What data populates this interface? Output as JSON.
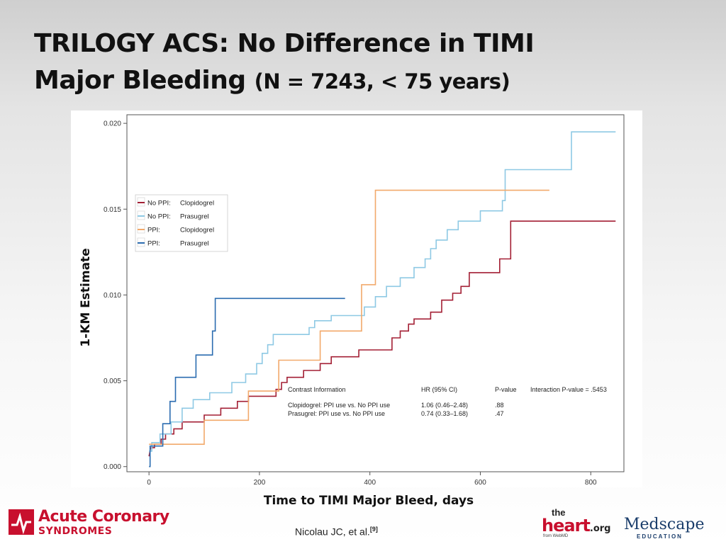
{
  "slide": {
    "title_line1": "TRILOGY ACS: No Difference in TIMI",
    "title_line2": "Major Bleeding",
    "title_line2_sub": "(N = 7243, < 75 years)",
    "citation": "Nicolau JC, et al.",
    "citation_ref": "[9]",
    "logos": {
      "acs_line1": "Acute Coronary",
      "acs_line2": "SYNDROMES",
      "heart_the": "the",
      "heart_main": "heart",
      "heart_org": ".org",
      "heart_from": "from WebMD",
      "medscape": "Medscape",
      "medscape_sub": "EDUCATION"
    }
  },
  "chart_data": {
    "type": "line",
    "step": true,
    "xlabel": "Time to TIMI Major Bleed, days",
    "ylabel": "1-KM Estimate",
    "xlim": [
      -40,
      860
    ],
    "ylim": [
      -0.0003,
      0.0205
    ],
    "xticks": [
      0,
      200,
      400,
      600,
      800
    ],
    "yticks": [
      0.0,
      0.005,
      0.01,
      0.015,
      0.02
    ],
    "ytick_labels": [
      "0.000",
      "0.005",
      "0.010",
      "0.015",
      "0.020"
    ],
    "grid": false,
    "legend_position": "top-left",
    "series": [
      {
        "name_group": "No PPI:",
        "name_drug": "Clopidogrel",
        "color": "#a31f34",
        "points": [
          [
            0,
            0.0006
          ],
          [
            3,
            0.0011
          ],
          [
            10,
            0.0011
          ],
          [
            10,
            0.0013
          ],
          [
            22,
            0.0013
          ],
          [
            22,
            0.0016
          ],
          [
            30,
            0.0016
          ],
          [
            30,
            0.0019
          ],
          [
            45,
            0.0019
          ],
          [
            45,
            0.0022
          ],
          [
            60,
            0.0022
          ],
          [
            60,
            0.0026
          ],
          [
            100,
            0.0026
          ],
          [
            100,
            0.003
          ],
          [
            130,
            0.003
          ],
          [
            130,
            0.0034
          ],
          [
            160,
            0.0034
          ],
          [
            160,
            0.0038
          ],
          [
            180,
            0.0038
          ],
          [
            180,
            0.0041
          ],
          [
            230,
            0.0041
          ],
          [
            230,
            0.0045
          ],
          [
            240,
            0.0045
          ],
          [
            240,
            0.0049
          ],
          [
            250,
            0.0049
          ],
          [
            250,
            0.0052
          ],
          [
            280,
            0.0052
          ],
          [
            280,
            0.0056
          ],
          [
            310,
            0.0056
          ],
          [
            310,
            0.006
          ],
          [
            330,
            0.006
          ],
          [
            330,
            0.0064
          ],
          [
            380,
            0.0064
          ],
          [
            380,
            0.0068
          ],
          [
            440,
            0.0068
          ],
          [
            440,
            0.0075
          ],
          [
            455,
            0.0075
          ],
          [
            455,
            0.0079
          ],
          [
            470,
            0.0079
          ],
          [
            470,
            0.0083
          ],
          [
            480,
            0.0083
          ],
          [
            480,
            0.0086
          ],
          [
            510,
            0.0086
          ],
          [
            510,
            0.009
          ],
          [
            530,
            0.009
          ],
          [
            530,
            0.0097
          ],
          [
            550,
            0.0097
          ],
          [
            550,
            0.0101
          ],
          [
            565,
            0.0101
          ],
          [
            565,
            0.0105
          ],
          [
            580,
            0.0105
          ],
          [
            580,
            0.0113
          ],
          [
            635,
            0.0113
          ],
          [
            635,
            0.0121
          ],
          [
            655,
            0.0121
          ],
          [
            655,
            0.0143
          ],
          [
            845,
            0.0143
          ]
        ]
      },
      {
        "name_group": "No PPI:",
        "name_drug": "Prasugrel",
        "color": "#8ec9e4",
        "points": [
          [
            0,
            0.0009
          ],
          [
            5,
            0.0009
          ],
          [
            5,
            0.0014
          ],
          [
            20,
            0.0014
          ],
          [
            20,
            0.0019
          ],
          [
            40,
            0.0019
          ],
          [
            40,
            0.0026
          ],
          [
            60,
            0.0026
          ],
          [
            60,
            0.0034
          ],
          [
            80,
            0.0034
          ],
          [
            80,
            0.0039
          ],
          [
            110,
            0.0039
          ],
          [
            110,
            0.0043
          ],
          [
            150,
            0.0043
          ],
          [
            150,
            0.0049
          ],
          [
            175,
            0.0049
          ],
          [
            175,
            0.0054
          ],
          [
            195,
            0.0054
          ],
          [
            195,
            0.006
          ],
          [
            205,
            0.006
          ],
          [
            205,
            0.0066
          ],
          [
            215,
            0.0066
          ],
          [
            215,
            0.0071
          ],
          [
            225,
            0.0071
          ],
          [
            225,
            0.0077
          ],
          [
            290,
            0.0077
          ],
          [
            290,
            0.0081
          ],
          [
            300,
            0.0081
          ],
          [
            300,
            0.0085
          ],
          [
            330,
            0.0085
          ],
          [
            330,
            0.0088
          ],
          [
            390,
            0.0088
          ],
          [
            390,
            0.0093
          ],
          [
            410,
            0.0093
          ],
          [
            410,
            0.0099
          ],
          [
            430,
            0.0099
          ],
          [
            430,
            0.0105
          ],
          [
            455,
            0.0105
          ],
          [
            455,
            0.011
          ],
          [
            480,
            0.011
          ],
          [
            480,
            0.0116
          ],
          [
            500,
            0.0116
          ],
          [
            500,
            0.0121
          ],
          [
            510,
            0.0121
          ],
          [
            510,
            0.0127
          ],
          [
            520,
            0.0127
          ],
          [
            520,
            0.0132
          ],
          [
            540,
            0.0132
          ],
          [
            540,
            0.0138
          ],
          [
            560,
            0.0138
          ],
          [
            560,
            0.0143
          ],
          [
            600,
            0.0143
          ],
          [
            600,
            0.0149
          ],
          [
            640,
            0.0149
          ],
          [
            640,
            0.0155
          ],
          [
            645,
            0.0155
          ],
          [
            645,
            0.0173
          ],
          [
            765,
            0.0173
          ],
          [
            765,
            0.0195
          ],
          [
            845,
            0.0195
          ]
        ]
      },
      {
        "name_group": "PPI:",
        "name_drug": "Clopidogrel",
        "color": "#f2a96b",
        "points": [
          [
            0,
            0.0013
          ],
          [
            100,
            0.0013
          ],
          [
            100,
            0.0027
          ],
          [
            180,
            0.0027
          ],
          [
            180,
            0.0044
          ],
          [
            235,
            0.0044
          ],
          [
            235,
            0.0062
          ],
          [
            310,
            0.0062
          ],
          [
            310,
            0.0079
          ],
          [
            385,
            0.0079
          ],
          [
            385,
            0.0106
          ],
          [
            410,
            0.0106
          ],
          [
            410,
            0.0161
          ],
          [
            725,
            0.0161
          ]
        ]
      },
      {
        "name_group": "PPI:",
        "name_drug": "Prasugrel",
        "color": "#2b6cb0",
        "points": [
          [
            0,
            0.0
          ],
          [
            2,
            0.0
          ],
          [
            2,
            0.0012
          ],
          [
            25,
            0.0012
          ],
          [
            25,
            0.0025
          ],
          [
            38,
            0.0025
          ],
          [
            38,
            0.0038
          ],
          [
            48,
            0.0038
          ],
          [
            48,
            0.0052
          ],
          [
            85,
            0.0052
          ],
          [
            85,
            0.0065
          ],
          [
            115,
            0.0065
          ],
          [
            115,
            0.0079
          ],
          [
            120,
            0.0079
          ],
          [
            120,
            0.0098
          ],
          [
            355,
            0.0098
          ]
        ]
      }
    ],
    "contrast_table": {
      "headers": [
        "Contrast Information",
        "HR (95% CI)",
        "P-value",
        "Interaction P-value = .5453"
      ],
      "rows": [
        [
          "Clopidogrel: PPI use vs. No PPI use",
          "1.06 (0.46–2.48)",
          ".88"
        ],
        [
          "Prasugrel:   PPI use vs. No PPI use",
          "0.74 (0.33–1.68)",
          ".47"
        ]
      ]
    }
  }
}
